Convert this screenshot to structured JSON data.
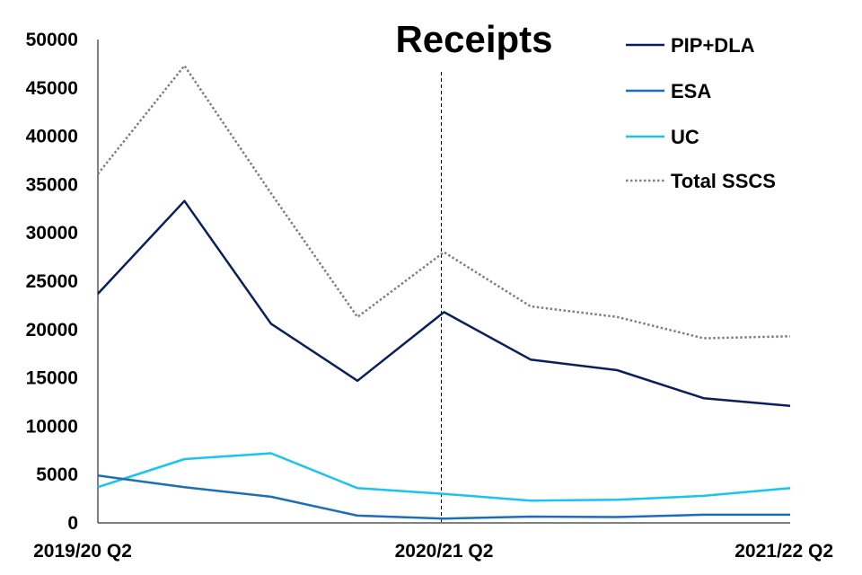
{
  "chart_data": {
    "type": "line",
    "title": "Receipts",
    "xlabel": "",
    "ylabel": "",
    "x_labels_shown": [
      "2019/20 Q2",
      "2020/21 Q2",
      "2021/22 Q2"
    ],
    "ylim": [
      0,
      50000
    ],
    "y_ticks": [
      "0",
      "5000",
      "10000",
      "15000",
      "20000",
      "25000",
      "30000",
      "35000",
      "40000",
      "45000",
      "50000"
    ],
    "grid": false,
    "legend_position": "top-right",
    "vertical_marker_at_index": 4,
    "series": [
      {
        "name": "PIP+DLA",
        "color": "#0a1f5c",
        "style": "solid",
        "values": [
          23700,
          33300,
          20600,
          14700,
          21800,
          16900,
          15800,
          12900,
          12100
        ]
      },
      {
        "name": "ESA",
        "color": "#1a6fb8",
        "style": "solid",
        "values": [
          4900,
          3700,
          2700,
          750,
          450,
          650,
          600,
          850,
          850
        ]
      },
      {
        "name": "UC",
        "color": "#19c4f0",
        "style": "solid",
        "values": [
          3700,
          6600,
          7200,
          3600,
          3000,
          2300,
          2400,
          2800,
          3600
        ]
      },
      {
        "name": "Total SSCS",
        "color": "#7f7f7f",
        "style": "dotted",
        "values": [
          36100,
          47300,
          34100,
          21300,
          28000,
          22400,
          21300,
          19100,
          19300
        ]
      }
    ]
  }
}
